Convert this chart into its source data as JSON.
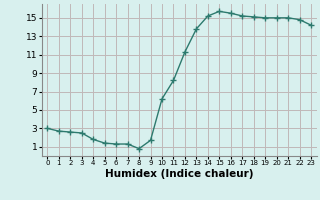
{
  "x": [
    0,
    1,
    2,
    3,
    4,
    5,
    6,
    7,
    8,
    9,
    10,
    11,
    12,
    13,
    14,
    15,
    16,
    17,
    18,
    19,
    20,
    21,
    22,
    23
  ],
  "y": [
    3.0,
    2.7,
    2.6,
    2.5,
    1.8,
    1.4,
    1.3,
    1.3,
    0.8,
    1.7,
    6.2,
    8.2,
    11.3,
    13.8,
    15.2,
    15.7,
    15.5,
    15.2,
    15.1,
    15.0,
    15.0,
    15.0,
    14.8,
    14.2
  ],
  "line_color": "#2d7a6e",
  "marker": "+",
  "marker_size": 4,
  "bg_color": "#d8f0ee",
  "grid_color": "#c0b8b8",
  "xlabel": "Humidex (Indice chaleur)",
  "ylim": [
    0,
    16.5
  ],
  "xlim": [
    -0.5,
    23.5
  ],
  "yticks": [
    1,
    3,
    5,
    7,
    9,
    11,
    13,
    15
  ],
  "xticks": [
    0,
    1,
    2,
    3,
    4,
    5,
    6,
    7,
    8,
    9,
    10,
    11,
    12,
    13,
    14,
    15,
    16,
    17,
    18,
    19,
    20,
    21,
    22,
    23
  ],
  "ytick_labels": [
    "1",
    "3",
    "5",
    "7",
    "9",
    "11",
    "13",
    "15"
  ],
  "xtick_labels": [
    "0",
    "1",
    "2",
    "3",
    "4",
    "5",
    "6",
    "7",
    "8",
    "9",
    "10",
    "11",
    "12",
    "13",
    "14",
    "15",
    "16",
    "17",
    "18",
    "19",
    "20",
    "21",
    "22",
    "23"
  ],
  "tick_fontsize": 6.5,
  "xlabel_fontsize": 7.5,
  "line_width": 1.0
}
